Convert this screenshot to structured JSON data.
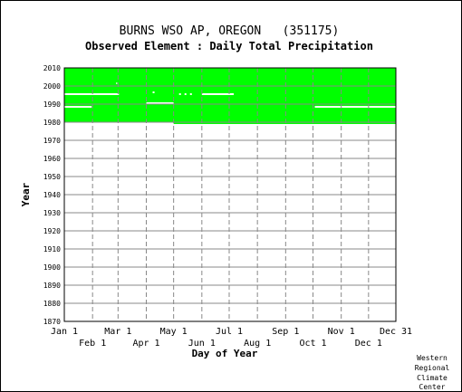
{
  "chart_data": {
    "type": "heatmap",
    "title": "BURNS WSO AP, OREGON   (351175)",
    "subtitle": "Observed Element : Daily Total Precipitation",
    "xlabel": "Day of Year",
    "ylabel": "Year",
    "xlim": [
      1,
      365
    ],
    "ylim": [
      1870,
      2010
    ],
    "yticks": [
      1870,
      1880,
      1890,
      1900,
      1910,
      1920,
      1930,
      1940,
      1950,
      1960,
      1970,
      1980,
      1990,
      2000,
      2010
    ],
    "xticks_top": [
      {
        "label": "Jan 1",
        "day": 1
      },
      {
        "label": "Mar 1",
        "day": 60
      },
      {
        "label": "May 1",
        "day": 121
      },
      {
        "label": "Jul 1",
        "day": 182
      },
      {
        "label": "Sep 1",
        "day": 244
      },
      {
        "label": "Nov 1",
        "day": 305
      },
      {
        "label": "Dec 31",
        "day": 365
      }
    ],
    "xticks_bottom": [
      {
        "label": "Feb 1",
        "day": 32
      },
      {
        "label": "Apr 1",
        "day": 91
      },
      {
        "label": "Jun 1",
        "day": 152
      },
      {
        "label": "Aug 1",
        "day": 213
      },
      {
        "label": "Oct 1",
        "day": 274
      },
      {
        "label": "Dec 1",
        "day": 335
      }
    ],
    "data_color": "#00ff00",
    "coverage": {
      "year_start": 1979,
      "year_end": 2010,
      "day_start": 1,
      "day_end": 365
    },
    "gaps": [
      {
        "year": 1979,
        "day_start": 1,
        "day_end": 120
      },
      {
        "year": 1988,
        "day_start": 1,
        "day_end": 30
      },
      {
        "year": 1988,
        "day_start": 276,
        "day_end": 365
      },
      {
        "year": 1990,
        "day_start": 91,
        "day_end": 120
      },
      {
        "year": 1995,
        "day_start": 1,
        "day_end": 60
      },
      {
        "year": 1995,
        "day_start": 152,
        "day_end": 186
      },
      {
        "year": 1995,
        "day_start": 127,
        "day_end": 128
      },
      {
        "year": 1995,
        "day_start": 133,
        "day_end": 134
      },
      {
        "year": 1995,
        "day_start": 139,
        "day_end": 140
      },
      {
        "year": 1996,
        "day_start": 98,
        "day_end": 99
      },
      {
        "year": 2001,
        "day_start": 58,
        "day_end": 58
      }
    ],
    "grid": true
  },
  "credit": [
    "Western",
    "Regional",
    "Climate",
    "Center"
  ]
}
